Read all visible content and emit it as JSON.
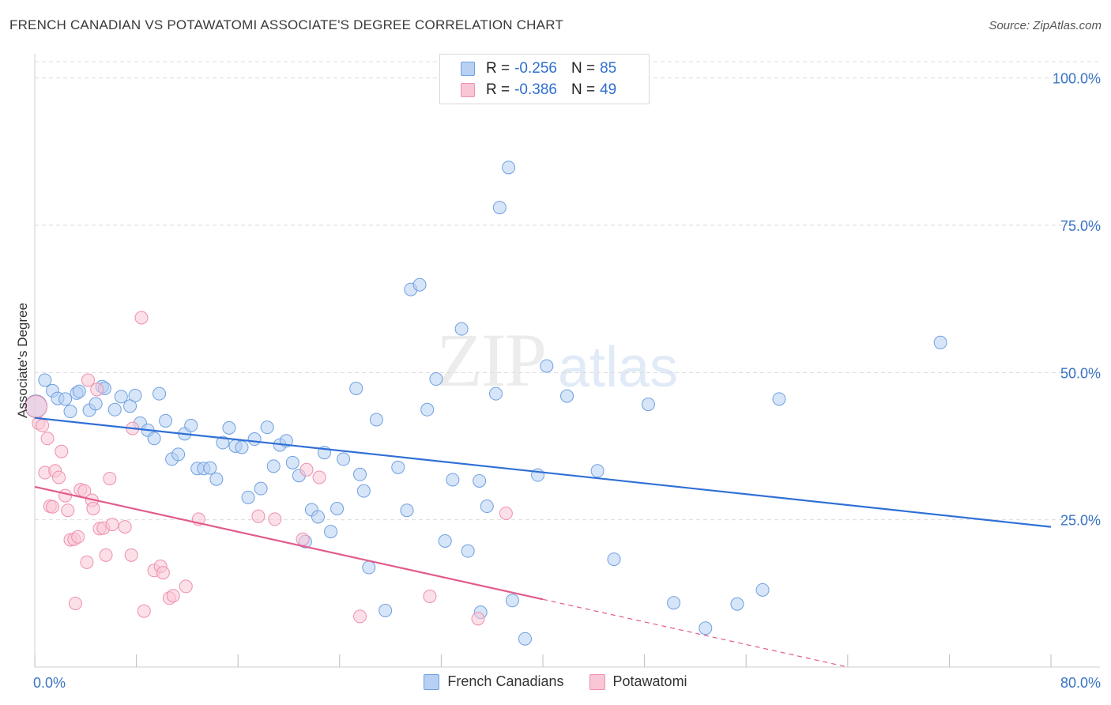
{
  "title": "FRENCH CANADIAN VS POTAWATOMI ASSOCIATE'S DEGREE CORRELATION CHART",
  "source": "Source: ZipAtlas.com",
  "watermark": {
    "zip": "ZIP",
    "atlas": "atlas"
  },
  "stats": {
    "r_label": "R =",
    "n_label": "N =",
    "rows": [
      {
        "r": "-0.256",
        "n": "85",
        "color": "#b7d0f4",
        "stroke": "#6fa0e0"
      },
      {
        "r": "-0.386",
        "n": "49",
        "color": "#f9c6d6",
        "stroke": "#ee8fae"
      }
    ]
  },
  "legend": [
    {
      "label": "French Canadians",
      "color": "#b7d0f4",
      "stroke": "#6fa0e0"
    },
    {
      "label": "Potawatomi",
      "color": "#f9c6d6",
      "stroke": "#ee8fae"
    }
  ],
  "chart_data": {
    "type": "scatter",
    "title": "FRENCH CANADIAN VS POTAWATOMI ASSOCIATE'S DEGREE CORRELATION CHART",
    "xlabel": "",
    "ylabel": "Associate's Degree",
    "xlim": [
      0,
      80
    ],
    "ylim": [
      0,
      102.5
    ],
    "x_tick_labels": {
      "0": "0.0%",
      "80": "80.0%"
    },
    "y_tick_labels": {
      "25": "25.0%",
      "50": "50.0%",
      "75": "75.0%",
      "100": "100.0%"
    },
    "grid": true,
    "legend_position": "bottom",
    "series": [
      {
        "name": "French Canadians",
        "color": "#6fa0e0",
        "fill": "#b7d0f4",
        "trend": {
          "x": [
            0,
            80
          ],
          "y": [
            42.3,
            23.8
          ],
          "color": "#2f6fd6"
        },
        "points": [
          [
            0.1,
            44.3
          ],
          [
            0.8,
            48.7
          ],
          [
            1.4,
            46.9
          ],
          [
            1.8,
            45.6
          ],
          [
            2.4,
            45.5
          ],
          [
            2.8,
            43.4
          ],
          [
            3.3,
            46.5
          ],
          [
            3.5,
            46.8
          ],
          [
            4.3,
            43.6
          ],
          [
            4.8,
            44.7
          ],
          [
            5.3,
            47.6
          ],
          [
            5.5,
            47.3
          ],
          [
            6.3,
            43.7
          ],
          [
            6.8,
            45.9
          ],
          [
            7.5,
            44.3
          ],
          [
            7.9,
            46.1
          ],
          [
            8.3,
            41.4
          ],
          [
            8.9,
            40.2
          ],
          [
            9.4,
            38.8
          ],
          [
            9.8,
            46.4
          ],
          [
            10.3,
            41.8
          ],
          [
            10.8,
            35.3
          ],
          [
            11.3,
            36.1
          ],
          [
            11.8,
            39.6
          ],
          [
            12.3,
            41.0
          ],
          [
            12.8,
            33.7
          ],
          [
            13.3,
            33.7
          ],
          [
            13.8,
            33.8
          ],
          [
            14.3,
            31.9
          ],
          [
            14.8,
            38.1
          ],
          [
            15.3,
            40.6
          ],
          [
            15.8,
            37.5
          ],
          [
            16.3,
            37.3
          ],
          [
            16.8,
            28.8
          ],
          [
            17.3,
            38.7
          ],
          [
            17.8,
            30.3
          ],
          [
            18.3,
            40.7
          ],
          [
            18.8,
            34.1
          ],
          [
            19.3,
            37.7
          ],
          [
            19.8,
            38.4
          ],
          [
            20.3,
            34.7
          ],
          [
            20.8,
            32.5
          ],
          [
            21.3,
            21.3
          ],
          [
            21.8,
            26.7
          ],
          [
            22.3,
            25.5
          ],
          [
            22.8,
            36.4
          ],
          [
            23.3,
            23.0
          ],
          [
            23.8,
            26.9
          ],
          [
            24.3,
            35.3
          ],
          [
            25.3,
            47.3
          ],
          [
            25.6,
            32.7
          ],
          [
            25.9,
            29.9
          ],
          [
            26.3,
            16.9
          ],
          [
            26.9,
            42.0
          ],
          [
            27.6,
            9.6
          ],
          [
            28.6,
            33.9
          ],
          [
            29.3,
            26.6
          ],
          [
            29.6,
            64.1
          ],
          [
            30.3,
            64.9
          ],
          [
            30.9,
            43.7
          ],
          [
            31.6,
            48.9
          ],
          [
            32.3,
            21.4
          ],
          [
            32.9,
            31.8
          ],
          [
            33.6,
            57.4
          ],
          [
            34.1,
            19.7
          ],
          [
            35.0,
            31.6
          ],
          [
            35.1,
            9.3
          ],
          [
            35.6,
            27.3
          ],
          [
            36.3,
            46.4
          ],
          [
            36.6,
            78.0
          ],
          [
            37.3,
            84.8
          ],
          [
            37.6,
            11.3
          ],
          [
            38.6,
            4.8
          ],
          [
            39.6,
            32.6
          ],
          [
            40.3,
            51.1
          ],
          [
            41.9,
            46.0
          ],
          [
            44.3,
            33.3
          ],
          [
            45.6,
            18.3
          ],
          [
            48.3,
            44.6
          ],
          [
            50.3,
            10.9
          ],
          [
            52.8,
            6.6
          ],
          [
            55.3,
            10.7
          ],
          [
            57.3,
            13.1
          ],
          [
            58.6,
            45.5
          ],
          [
            71.3,
            55.1
          ]
        ]
      },
      {
        "name": "Potawatomi",
        "color": "#ee8fae",
        "fill": "#f9c6d6",
        "trend": {
          "x": [
            0,
            40
          ],
          "y": [
            30.6,
            11.5
          ],
          "color": "#e25b8e",
          "dashed_to": {
            "x": 64,
            "y": 0
          }
        },
        "points": [
          [
            0.3,
            41.4
          ],
          [
            0.6,
            41.0
          ],
          [
            0.8,
            33.0
          ],
          [
            1.0,
            38.8
          ],
          [
            1.2,
            27.3
          ],
          [
            1.4,
            27.2
          ],
          [
            1.6,
            33.3
          ],
          [
            1.9,
            32.2
          ],
          [
            2.1,
            36.6
          ],
          [
            2.4,
            29.1
          ],
          [
            2.6,
            26.6
          ],
          [
            2.8,
            21.6
          ],
          [
            3.1,
            21.7
          ],
          [
            3.2,
            10.8
          ],
          [
            3.4,
            22.1
          ],
          [
            3.6,
            30.1
          ],
          [
            3.9,
            29.9
          ],
          [
            4.1,
            17.8
          ],
          [
            4.2,
            48.7
          ],
          [
            4.5,
            28.3
          ],
          [
            4.6,
            26.9
          ],
          [
            4.9,
            47.1
          ],
          [
            5.1,
            23.5
          ],
          [
            5.4,
            23.6
          ],
          [
            5.6,
            19.0
          ],
          [
            5.9,
            32.0
          ],
          [
            6.1,
            24.2
          ],
          [
            7.1,
            23.8
          ],
          [
            7.6,
            19.0
          ],
          [
            7.7,
            40.5
          ],
          [
            8.4,
            59.3
          ],
          [
            8.6,
            9.5
          ],
          [
            9.4,
            16.4
          ],
          [
            9.9,
            17.1
          ],
          [
            10.1,
            16.0
          ],
          [
            10.6,
            11.7
          ],
          [
            10.9,
            12.1
          ],
          [
            11.9,
            13.7
          ],
          [
            12.9,
            25.1
          ],
          [
            17.6,
            25.6
          ],
          [
            18.9,
            25.1
          ],
          [
            21.1,
            21.7
          ],
          [
            21.4,
            33.5
          ],
          [
            22.4,
            32.2
          ],
          [
            25.6,
            8.6
          ],
          [
            31.1,
            12.0
          ],
          [
            34.9,
            8.2
          ],
          [
            37.1,
            26.1
          ],
          [
            0.1,
            44.2
          ]
        ]
      }
    ]
  }
}
